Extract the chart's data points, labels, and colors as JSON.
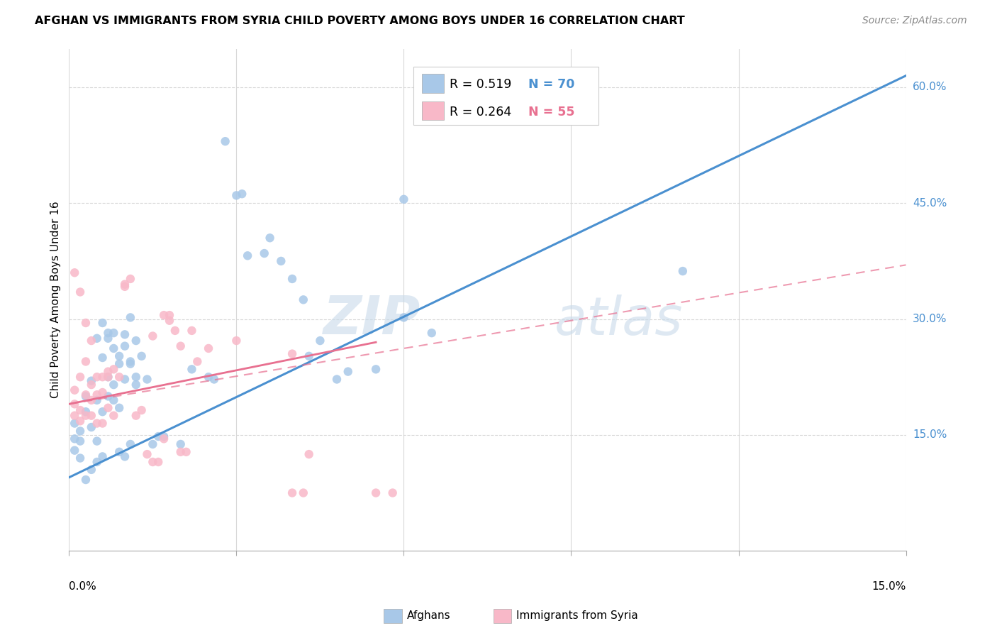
{
  "title": "AFGHAN VS IMMIGRANTS FROM SYRIA CHILD POVERTY AMONG BOYS UNDER 16 CORRELATION CHART",
  "source": "Source: ZipAtlas.com",
  "ylabel": "Child Poverty Among Boys Under 16",
  "x_min": 0.0,
  "x_max": 0.15,
  "y_min": 0.0,
  "y_max": 0.65,
  "x_ticks": [
    0.0,
    0.03,
    0.06,
    0.09,
    0.12,
    0.15
  ],
  "y_tick_labels_right": [
    "15.0%",
    "30.0%",
    "45.0%",
    "60.0%"
  ],
  "y_tick_vals_right": [
    0.15,
    0.3,
    0.45,
    0.6
  ],
  "legend_blue_r": "R = 0.519",
  "legend_blue_n": "N = 70",
  "legend_pink_r": "R = 0.264",
  "legend_pink_n": "N = 55",
  "blue_scatter_color": "#a8c8e8",
  "pink_scatter_color": "#f8b8c8",
  "line_blue": "#4a90d0",
  "line_pink": "#e87090",
  "line_pink_dash": "#e87090",
  "watermark": "ZIPatlas",
  "watermark_color": "#c8d8ea",
  "background_color": "#ffffff",
  "grid_color": "#d8d8d8",
  "blue_scatter": [
    [
      0.001,
      0.13
    ],
    [
      0.001,
      0.165
    ],
    [
      0.001,
      0.145
    ],
    [
      0.002,
      0.155
    ],
    [
      0.002,
      0.12
    ],
    [
      0.002,
      0.142
    ],
    [
      0.003,
      0.2
    ],
    [
      0.003,
      0.18
    ],
    [
      0.003,
      0.092
    ],
    [
      0.004,
      0.22
    ],
    [
      0.004,
      0.16
    ],
    [
      0.004,
      0.105
    ],
    [
      0.005,
      0.195
    ],
    [
      0.005,
      0.142
    ],
    [
      0.005,
      0.115
    ],
    [
      0.005,
      0.275
    ],
    [
      0.006,
      0.25
    ],
    [
      0.006,
      0.18
    ],
    [
      0.006,
      0.122
    ],
    [
      0.006,
      0.295
    ],
    [
      0.007,
      0.225
    ],
    [
      0.007,
      0.2
    ],
    [
      0.007,
      0.282
    ],
    [
      0.007,
      0.275
    ],
    [
      0.008,
      0.262
    ],
    [
      0.008,
      0.195
    ],
    [
      0.008,
      0.215
    ],
    [
      0.008,
      0.282
    ],
    [
      0.009,
      0.242
    ],
    [
      0.009,
      0.185
    ],
    [
      0.009,
      0.252
    ],
    [
      0.009,
      0.128
    ],
    [
      0.01,
      0.28
    ],
    [
      0.01,
      0.222
    ],
    [
      0.01,
      0.265
    ],
    [
      0.01,
      0.122
    ],
    [
      0.011,
      0.302
    ],
    [
      0.011,
      0.245
    ],
    [
      0.011,
      0.242
    ],
    [
      0.011,
      0.138
    ],
    [
      0.012,
      0.272
    ],
    [
      0.012,
      0.225
    ],
    [
      0.012,
      0.215
    ],
    [
      0.013,
      0.252
    ],
    [
      0.014,
      0.222
    ],
    [
      0.015,
      0.138
    ],
    [
      0.016,
      0.148
    ],
    [
      0.017,
      0.148
    ],
    [
      0.02,
      0.138
    ],
    [
      0.022,
      0.235
    ],
    [
      0.025,
      0.225
    ],
    [
      0.026,
      0.222
    ],
    [
      0.028,
      0.53
    ],
    [
      0.03,
      0.46
    ],
    [
      0.031,
      0.462
    ],
    [
      0.032,
      0.382
    ],
    [
      0.035,
      0.385
    ],
    [
      0.036,
      0.405
    ],
    [
      0.038,
      0.375
    ],
    [
      0.04,
      0.352
    ],
    [
      0.042,
      0.325
    ],
    [
      0.043,
      0.252
    ],
    [
      0.045,
      0.272
    ],
    [
      0.048,
      0.222
    ],
    [
      0.05,
      0.232
    ],
    [
      0.055,
      0.235
    ],
    [
      0.06,
      0.302
    ],
    [
      0.06,
      0.455
    ],
    [
      0.065,
      0.282
    ],
    [
      0.11,
      0.362
    ]
  ],
  "pink_scatter": [
    [
      0.001,
      0.208
    ],
    [
      0.001,
      0.19
    ],
    [
      0.001,
      0.175
    ],
    [
      0.001,
      0.36
    ],
    [
      0.002,
      0.182
    ],
    [
      0.002,
      0.225
    ],
    [
      0.002,
      0.168
    ],
    [
      0.002,
      0.335
    ],
    [
      0.003,
      0.202
    ],
    [
      0.003,
      0.245
    ],
    [
      0.003,
      0.175
    ],
    [
      0.003,
      0.295
    ],
    [
      0.004,
      0.215
    ],
    [
      0.004,
      0.195
    ],
    [
      0.004,
      0.175
    ],
    [
      0.004,
      0.272
    ],
    [
      0.005,
      0.225
    ],
    [
      0.005,
      0.202
    ],
    [
      0.005,
      0.165
    ],
    [
      0.006,
      0.225
    ],
    [
      0.006,
      0.205
    ],
    [
      0.006,
      0.165
    ],
    [
      0.007,
      0.232
    ],
    [
      0.007,
      0.225
    ],
    [
      0.007,
      0.185
    ],
    [
      0.008,
      0.235
    ],
    [
      0.008,
      0.175
    ],
    [
      0.009,
      0.225
    ],
    [
      0.01,
      0.342
    ],
    [
      0.011,
      0.352
    ],
    [
      0.012,
      0.175
    ],
    [
      0.013,
      0.182
    ],
    [
      0.014,
      0.125
    ],
    [
      0.015,
      0.115
    ],
    [
      0.016,
      0.115
    ],
    [
      0.017,
      0.145
    ],
    [
      0.017,
      0.305
    ],
    [
      0.018,
      0.305
    ],
    [
      0.019,
      0.285
    ],
    [
      0.02,
      0.265
    ],
    [
      0.02,
      0.128
    ],
    [
      0.021,
      0.128
    ],
    [
      0.022,
      0.285
    ],
    [
      0.023,
      0.245
    ],
    [
      0.025,
      0.262
    ],
    [
      0.03,
      0.272
    ],
    [
      0.04,
      0.255
    ],
    [
      0.015,
      0.278
    ],
    [
      0.018,
      0.298
    ],
    [
      0.01,
      0.345
    ],
    [
      0.055,
      0.075
    ],
    [
      0.058,
      0.075
    ],
    [
      0.04,
      0.075
    ],
    [
      0.042,
      0.075
    ],
    [
      0.043,
      0.125
    ]
  ],
  "blue_line_x": [
    0.0,
    0.15
  ],
  "blue_line_y": [
    0.095,
    0.615
  ],
  "pink_solid_line_x": [
    0.0,
    0.055
  ],
  "pink_solid_line_y": [
    0.19,
    0.27
  ],
  "pink_dash_line_x": [
    0.0,
    0.15
  ],
  "pink_dash_line_y": [
    0.19,
    0.37
  ]
}
